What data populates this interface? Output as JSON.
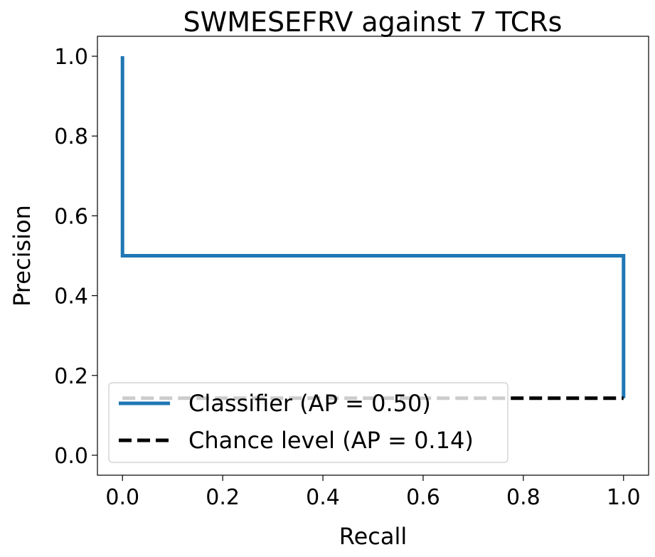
{
  "chart_data": {
    "type": "line",
    "title": "SWMESEFRV against 7 TCRs",
    "xlabel": "Recall",
    "ylabel": "Precision",
    "xlim": [
      -0.05,
      1.05
    ],
    "ylim": [
      -0.05,
      1.05
    ],
    "xticks": [
      0.0,
      0.2,
      0.4,
      0.6,
      0.8,
      1.0
    ],
    "yticks": [
      0.0,
      0.2,
      0.4,
      0.6,
      0.8,
      1.0
    ],
    "xtick_labels": [
      "0.0",
      "0.2",
      "0.4",
      "0.6",
      "0.8",
      "1.0"
    ],
    "ytick_labels": [
      "0.0",
      "0.2",
      "0.4",
      "0.6",
      "0.8",
      "1.0"
    ],
    "grid": false,
    "legend_position": "lower-left",
    "series": [
      {
        "name": "Classifier (AP = 0.50)",
        "style": "solid",
        "color": "#1f77b4",
        "x": [
          0.0,
          0.0,
          0.0,
          1.0,
          1.0
        ],
        "y": [
          1.0,
          0.5,
          0.5,
          0.5,
          0.1429
        ]
      },
      {
        "name": "Chance level (AP = 0.14)",
        "style": "dashed",
        "color": "#000000",
        "x": [
          0.0,
          1.0
        ],
        "y": [
          0.1429,
          0.1429
        ]
      }
    ]
  }
}
